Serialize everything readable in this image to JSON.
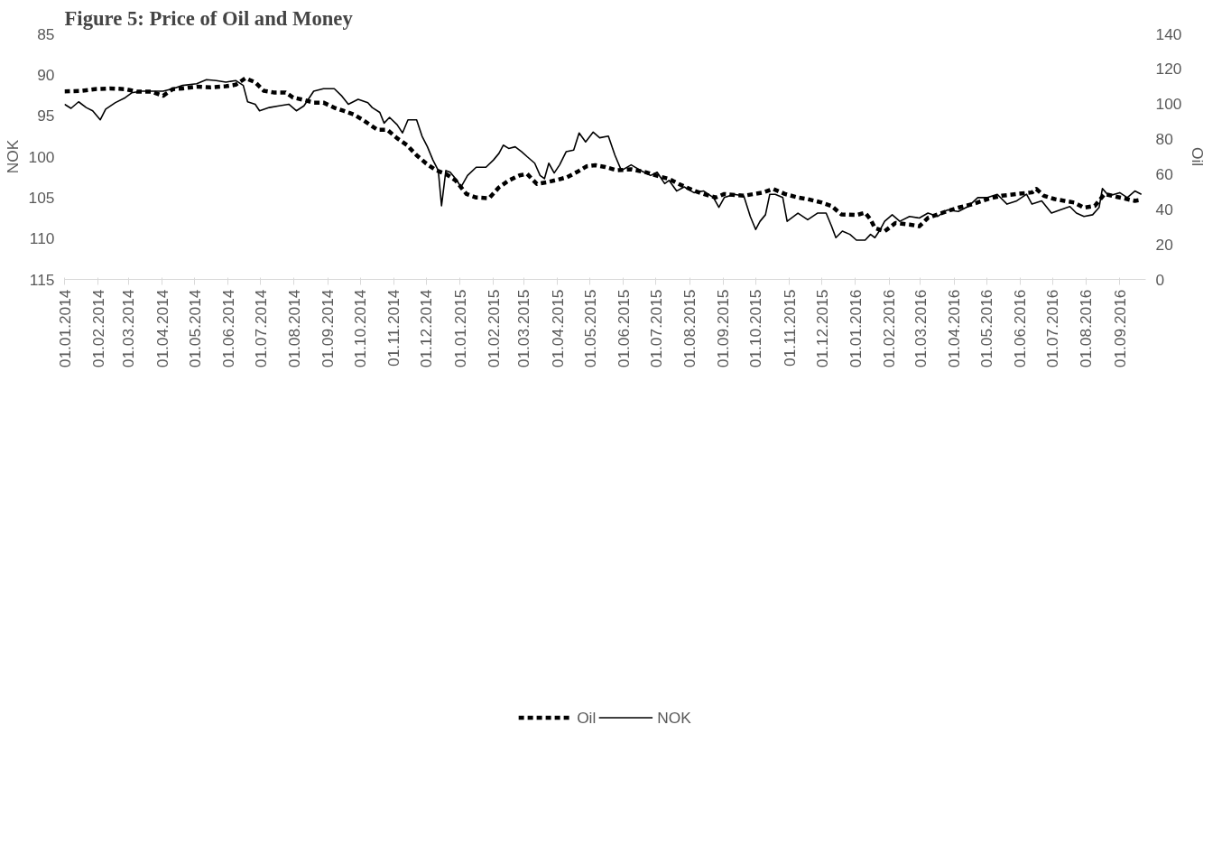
{
  "chart_data": {
    "type": "line",
    "title": "Figure 5: Price of Oil and Money",
    "ylabel": "NOK",
    "y2label": "Oil",
    "xlim": [
      "2014-01-01",
      "2016-09-25"
    ],
    "xticks": [
      {
        "value": "2014-01-01",
        "label": "01.01.2014"
      },
      {
        "value": "2014-02-01",
        "label": "01.02.2014"
      },
      {
        "value": "2014-03-01",
        "label": "01.03.2014"
      },
      {
        "value": "2014-04-01",
        "label": "01.04.2014"
      },
      {
        "value": "2014-05-01",
        "label": "01.05.2014"
      },
      {
        "value": "2014-06-01",
        "label": "01.06.2014"
      },
      {
        "value": "2014-07-01",
        "label": "01.07.2014"
      },
      {
        "value": "2014-08-01",
        "label": "01.08.2014"
      },
      {
        "value": "2014-09-01",
        "label": "01.09.2014"
      },
      {
        "value": "2014-10-01",
        "label": "01.10.2014"
      },
      {
        "value": "2014-11-01",
        "label": "01.11.2014"
      },
      {
        "value": "2014-12-01",
        "label": "01.12.2014"
      },
      {
        "value": "2015-01-01",
        "label": "01.01.2015"
      },
      {
        "value": "2015-02-01",
        "label": "01.02.2015"
      },
      {
        "value": "2015-03-01",
        "label": "01.03.2015"
      },
      {
        "value": "2015-04-01",
        "label": "01.04.2015"
      },
      {
        "value": "2015-05-01",
        "label": "01.05.2015"
      },
      {
        "value": "2015-06-01",
        "label": "01.06.2015"
      },
      {
        "value": "2015-07-01",
        "label": "01.07.2015"
      },
      {
        "value": "2015-08-01",
        "label": "01.08.2015"
      },
      {
        "value": "2015-09-01",
        "label": "01.09.2015"
      },
      {
        "value": "2015-10-01",
        "label": "01.10.2015"
      },
      {
        "value": "2015-11-01",
        "label": "01.11.2015"
      },
      {
        "value": "2015-12-01",
        "label": "01.12.2015"
      },
      {
        "value": "2016-01-01",
        "label": "01.01.2016"
      },
      {
        "value": "2016-02-01",
        "label": "01.02.2016"
      },
      {
        "value": "2016-03-01",
        "label": "01.03.2016"
      },
      {
        "value": "2016-04-01",
        "label": "01.04.2016"
      },
      {
        "value": "2016-05-01",
        "label": "01.05.2016"
      },
      {
        "value": "2016-06-01",
        "label": "01.06.2016"
      },
      {
        "value": "2016-07-01",
        "label": "01.07.2016"
      },
      {
        "value": "2016-08-01",
        "label": "01.08.2016"
      },
      {
        "value": "2016-09-01",
        "label": "01.09.2016"
      }
    ],
    "ylim": [
      115,
      85
    ],
    "yticks": [
      85,
      90,
      95,
      100,
      105,
      110,
      115
    ],
    "y2lim": [
      0,
      140
    ],
    "y2ticks": [
      0,
      20,
      40,
      60,
      80,
      100,
      120,
      140
    ],
    "grid": false,
    "legend": "bottom",
    "series": [
      {
        "name": "Oil",
        "color": "#000000",
        "axis": "y2",
        "line_style": "dashed",
        "x": [
          "2014-01-01",
          "2014-01-16",
          "2014-01-29",
          "2014-02-12",
          "2014-02-26",
          "2014-03-09",
          "2014-03-22",
          "2014-04-02",
          "2014-04-11",
          "2014-04-20",
          "2014-05-03",
          "2014-05-16",
          "2014-05-30",
          "2014-06-08",
          "2014-06-17",
          "2014-06-26",
          "2014-07-04",
          "2014-07-13",
          "2014-07-24",
          "2014-07-31",
          "2014-08-10",
          "2014-08-19",
          "2014-08-28",
          "2014-09-07",
          "2014-09-16",
          "2014-09-25",
          "2014-10-03",
          "2014-10-12",
          "2014-10-17",
          "2014-10-26",
          "2014-11-04",
          "2014-11-13",
          "2014-11-22",
          "2014-12-01",
          "2014-12-10",
          "2014-12-19",
          "2014-12-28",
          "2015-01-07",
          "2015-01-16",
          "2015-01-28",
          "2015-02-06",
          "2015-02-15",
          "2015-02-25",
          "2015-03-04",
          "2015-03-13",
          "2015-03-22",
          "2015-04-01",
          "2015-04-10",
          "2015-04-19",
          "2015-04-28",
          "2015-05-06",
          "2015-05-15",
          "2015-05-26",
          "2015-06-08",
          "2015-06-21",
          "2015-07-04",
          "2015-07-13",
          "2015-07-22",
          "2015-08-05",
          "2015-08-14",
          "2015-08-25",
          "2015-09-02",
          "2015-09-20",
          "2015-10-08",
          "2015-10-17",
          "2015-10-28",
          "2015-11-09",
          "2015-11-18",
          "2015-12-01",
          "2015-12-10",
          "2015-12-19",
          "2016-01-02",
          "2016-01-10",
          "2016-01-15",
          "2016-01-19",
          "2016-01-28",
          "2016-02-07",
          "2016-02-20",
          "2016-02-29",
          "2016-03-08",
          "2016-03-17",
          "2016-03-26",
          "2016-04-05",
          "2016-04-18",
          "2016-05-02",
          "2016-05-15",
          "2016-05-29",
          "2016-06-12",
          "2016-06-16",
          "2016-06-23",
          "2016-07-03",
          "2016-07-12",
          "2016-07-21",
          "2016-07-30",
          "2016-08-09",
          "2016-08-18",
          "2016-09-01",
          "2016-09-15",
          "2016-09-21"
        ],
        "values": [
          107.2,
          107.5,
          108.5,
          108.9,
          108.5,
          107.0,
          107.0,
          104.7,
          108.5,
          108.9,
          109.9,
          109.5,
          110.1,
          111.0,
          114.7,
          112.4,
          107.5,
          106.6,
          106.6,
          103.7,
          102.3,
          100.8,
          100.8,
          97.9,
          96.0,
          94.0,
          91.1,
          87.3,
          85.3,
          85.3,
          80.5,
          76.6,
          70.8,
          66.0,
          62.2,
          60.2,
          56.4,
          48.7,
          46.7,
          46.3,
          52.5,
          56.4,
          59.3,
          60.2,
          54.4,
          55.4,
          56.8,
          58.3,
          61.2,
          64.5,
          65.1,
          64.1,
          62.2,
          62.8,
          61.2,
          58.7,
          57.3,
          54.4,
          50.6,
          48.7,
          46.7,
          48.7,
          47.7,
          49.6,
          51.6,
          48.7,
          46.7,
          45.8,
          43.8,
          41.9,
          37.1,
          36.7,
          38.0,
          34.2,
          29.3,
          27.4,
          32.2,
          31.3,
          30.3,
          35.1,
          37.1,
          39.0,
          40.9,
          42.9,
          45.8,
          47.7,
          48.7,
          49.6,
          51.6,
          47.7,
          45.8,
          44.8,
          43.8,
          40.9,
          41.9,
          48.7,
          46.7,
          44.8,
          45.4
        ]
      },
      {
        "name": "NOK",
        "color": "#000000",
        "line_style": "solid",
        "x": [
          "2014-01-01",
          "2014-01-07",
          "2014-01-14",
          "2014-01-21",
          "2014-01-27",
          "2014-02-03",
          "2014-02-08",
          "2014-02-17",
          "2014-02-26",
          "2014-03-04",
          "2014-03-13",
          "2014-03-22",
          "2014-04-02",
          "2014-04-11",
          "2014-04-20",
          "2014-05-03",
          "2014-05-12",
          "2014-05-21",
          "2014-05-30",
          "2014-06-08",
          "2014-06-15",
          "2014-06-19",
          "2014-06-26",
          "2014-06-30",
          "2014-07-09",
          "2014-07-18",
          "2014-07-27",
          "2014-08-03",
          "2014-08-10",
          "2014-08-19",
          "2014-08-28",
          "2014-09-07",
          "2014-09-14",
          "2014-09-20",
          "2014-09-29",
          "2014-10-08",
          "2014-10-12",
          "2014-10-19",
          "2014-10-23",
          "2014-10-28",
          "2014-11-04",
          "2014-11-09",
          "2014-11-14",
          "2014-11-22",
          "2014-11-27",
          "2014-12-02",
          "2014-12-07",
          "2014-12-12",
          "2014-12-15",
          "2014-12-19",
          "2014-12-23",
          "2014-12-28",
          "2015-01-02",
          "2015-01-08",
          "2015-01-16",
          "2015-01-25",
          "2015-02-01",
          "2015-02-06",
          "2015-02-10",
          "2015-02-15",
          "2015-02-21",
          "2015-02-27",
          "2015-03-04",
          "2015-03-11",
          "2015-03-16",
          "2015-03-20",
          "2015-03-24",
          "2015-03-29",
          "2015-04-03",
          "2015-04-09",
          "2015-04-16",
          "2015-04-21",
          "2015-04-27",
          "2015-05-04",
          "2015-05-10",
          "2015-05-18",
          "2015-05-24",
          "2015-05-30",
          "2015-06-08",
          "2015-06-17",
          "2015-06-26",
          "2015-07-02",
          "2015-07-09",
          "2015-07-13",
          "2015-07-20",
          "2015-07-27",
          "2015-08-05",
          "2015-08-14",
          "2015-08-23",
          "2015-08-28",
          "2015-09-02",
          "2015-09-11",
          "2015-09-20",
          "2015-09-26",
          "2015-10-01",
          "2015-10-05",
          "2015-10-10",
          "2015-10-14",
          "2015-10-19",
          "2015-10-26",
          "2015-10-30",
          "2015-11-09",
          "2015-11-18",
          "2015-11-27",
          "2015-12-05",
          "2015-12-10",
          "2015-12-14",
          "2015-12-20",
          "2015-12-27",
          "2016-01-02",
          "2016-01-10",
          "2016-01-15",
          "2016-01-19",
          "2016-01-24",
          "2016-01-28",
          "2016-02-04",
          "2016-02-11",
          "2016-02-20",
          "2016-02-29",
          "2016-03-08",
          "2016-03-17",
          "2016-03-26",
          "2016-04-05",
          "2016-04-14",
          "2016-04-23",
          "2016-05-02",
          "2016-05-11",
          "2016-05-20",
          "2016-05-29",
          "2016-06-07",
          "2016-06-12",
          "2016-06-21",
          "2016-06-30",
          "2016-07-08",
          "2016-07-17",
          "2016-07-23",
          "2016-07-30",
          "2016-08-07",
          "2016-08-13",
          "2016-08-16",
          "2016-08-22",
          "2016-09-01",
          "2016-09-08",
          "2016-09-15",
          "2016-09-21"
        ],
        "values": [
          93.6,
          94.1,
          93.3,
          94.0,
          94.4,
          95.5,
          94.2,
          93.4,
          92.8,
          92.2,
          92.0,
          92.0,
          92.0,
          91.7,
          91.3,
          91.1,
          90.6,
          90.7,
          90.9,
          90.7,
          91.3,
          93.3,
          93.6,
          94.4,
          94.0,
          93.8,
          93.6,
          94.4,
          93.8,
          92.0,
          91.7,
          91.7,
          92.6,
          93.6,
          93.0,
          93.4,
          94.0,
          94.6,
          95.9,
          95.2,
          96.1,
          97.1,
          95.5,
          95.5,
          97.5,
          98.8,
          100.4,
          101.7,
          106.0,
          101.7,
          101.9,
          102.7,
          103.7,
          102.3,
          101.3,
          101.3,
          100.4,
          99.6,
          98.6,
          99.0,
          98.8,
          99.4,
          100.0,
          100.8,
          102.3,
          102.7,
          100.8,
          102.0,
          101.0,
          99.4,
          99.2,
          97.1,
          98.2,
          97.0,
          97.7,
          97.5,
          99.8,
          101.7,
          101.0,
          101.7,
          102.3,
          101.9,
          103.3,
          102.9,
          104.2,
          103.7,
          104.4,
          104.2,
          105.0,
          106.2,
          105.0,
          104.6,
          104.8,
          107.3,
          108.9,
          107.9,
          107.1,
          104.6,
          104.6,
          105.0,
          107.9,
          106.9,
          107.7,
          106.9,
          106.9,
          108.5,
          109.9,
          109.1,
          109.5,
          110.2,
          110.2,
          109.5,
          109.9,
          108.9,
          107.9,
          107.1,
          107.9,
          107.3,
          107.5,
          106.9,
          107.3,
          106.5,
          106.7,
          106.1,
          105.0,
          105.0,
          104.6,
          105.8,
          105.4,
          104.6,
          105.8,
          105.4,
          106.9,
          106.5,
          106.1,
          106.9,
          107.3,
          107.1,
          106.2,
          103.9,
          104.8,
          104.4,
          105.0,
          104.2,
          104.6
        ]
      }
    ]
  }
}
